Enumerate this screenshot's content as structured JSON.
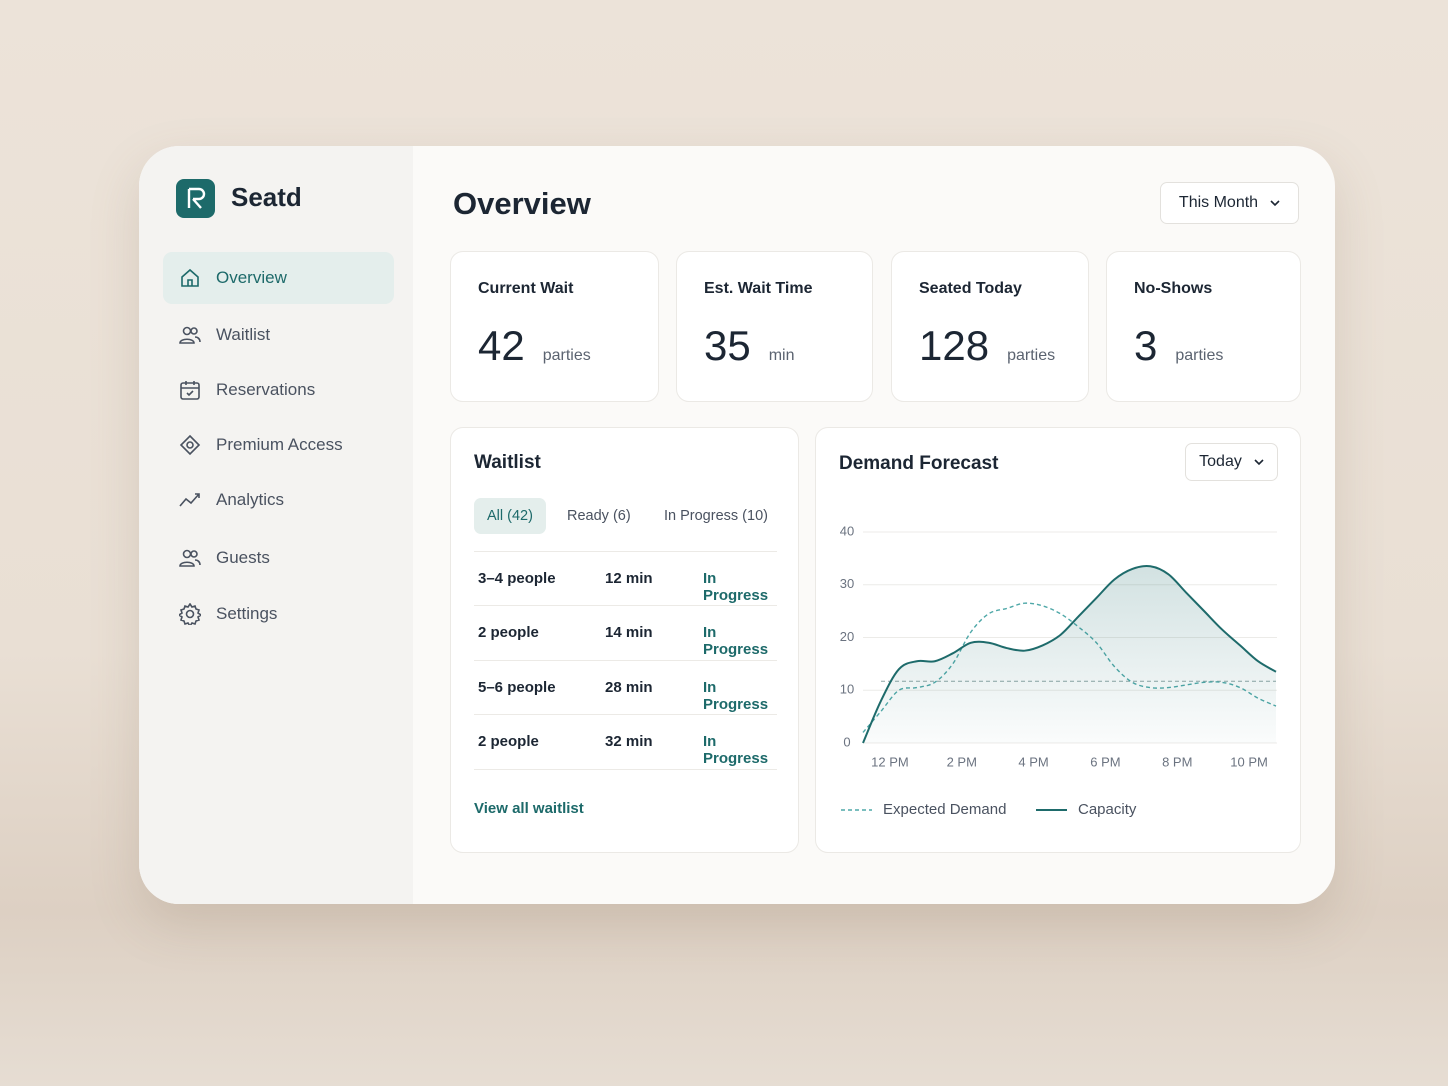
{
  "brand": "Seatd",
  "nav": [
    {
      "label": "Overview",
      "active": true
    },
    {
      "label": "Waitlist",
      "active": false
    },
    {
      "label": "Reservations",
      "active": false
    },
    {
      "label": "Premium Access",
      "active": false
    },
    {
      "label": "Analytics",
      "active": false
    },
    {
      "label": "Guests",
      "active": false
    },
    {
      "label": "Settings",
      "active": false
    }
  ],
  "header": {
    "title": "Overview",
    "period": "This Month"
  },
  "stats": [
    {
      "label": "Current Wait",
      "value": "42",
      "unit": "parties"
    },
    {
      "label": "Est. Wait Time",
      "value": "35",
      "unit": "min"
    },
    {
      "label": "Seated Today",
      "value": "128",
      "unit": "parties"
    },
    {
      "label": "No-Shows",
      "value": "3",
      "unit": "parties"
    }
  ],
  "waitlist": {
    "title": "Waitlist",
    "tabs": [
      {
        "label": "All (42)",
        "active": true
      },
      {
        "label": "Ready (6)",
        "active": false
      },
      {
        "label": "In Progress (10)",
        "active": false
      }
    ],
    "rows": [
      [
        "3–4 people",
        "12 min",
        "In Progress"
      ],
      [
        "2 people",
        "14 min",
        "In Progress"
      ],
      [
        "5–6 people",
        "28 min",
        "In Progress"
      ],
      [
        "2 people",
        "32 min",
        "In Progress"
      ]
    ],
    "link": "View all waitlist"
  },
  "chart_data": {
    "type": "line",
    "title": "Demand Forecast",
    "range": "Today",
    "x": [
      11.25,
      11.75,
      12.25,
      12.75,
      13.25,
      13.75,
      14.25,
      14.75,
      15.25,
      15.75,
      16.25,
      16.75,
      17.25,
      17.75,
      18.25,
      18.75,
      19.25,
      19.75,
      20.25,
      20.75,
      21.25,
      21.75,
      22.25,
      22.75
    ],
    "series": [
      {
        "name": "Expected Demand",
        "color": "#4fa8a8",
        "dashed": true,
        "area": false,
        "values": [
          2,
          6,
          10,
          10.5,
          11.5,
          15,
          21,
          24.5,
          25.5,
          26.5,
          26,
          24.5,
          22,
          19,
          14.5,
          11.5,
          10.5,
          10.5,
          11,
          11.5,
          11.5,
          10.5,
          8.5,
          7
        ]
      },
      {
        "name": "Capacity",
        "color": "#1e6b6b",
        "dashed": false,
        "area": true,
        "values": [
          0,
          8,
          14,
          15.5,
          15.5,
          17,
          19,
          19,
          18,
          17.5,
          18.5,
          20.5,
          24,
          27.5,
          31,
          33,
          33.5,
          32,
          28.5,
          25,
          21.5,
          18.5,
          15.5,
          13.5
        ]
      }
    ],
    "reference_line": 11.7,
    "xlim": [
      11.25,
      22.75
    ],
    "ylim": [
      0,
      40
    ],
    "xticks": [
      {
        "value": 12,
        "label": "12 PM"
      },
      {
        "value": 14,
        "label": "2 PM"
      },
      {
        "value": 16,
        "label": "4 PM"
      },
      {
        "value": 18,
        "label": "6 PM"
      },
      {
        "value": 20,
        "label": "8 PM"
      },
      {
        "value": 22,
        "label": "10 PM"
      }
    ],
    "yticks": [
      0,
      10,
      20,
      30,
      40
    ],
    "grid": true,
    "legend": "bottom-left"
  }
}
